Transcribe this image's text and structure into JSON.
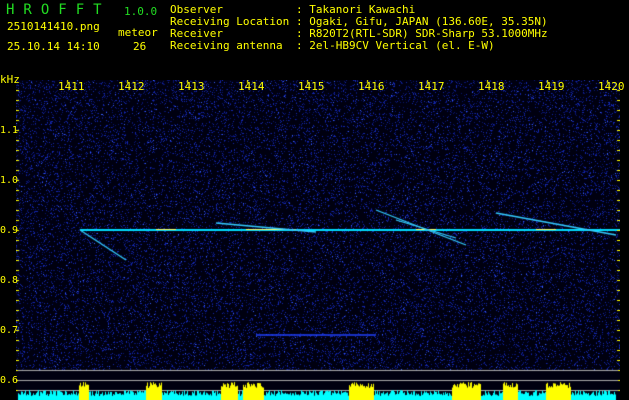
{
  "app": {
    "name": "HROFFT",
    "version": "1.0.0"
  },
  "file": {
    "name": "2510141410.png",
    "datetime": "25.10.14 14:10"
  },
  "meteor": {
    "label": "meteor",
    "count": "26"
  },
  "info": [
    {
      "label": "Observer",
      "value": ": Takanori Kawachi"
    },
    {
      "label": "Receiving Location",
      "value": ": Ogaki, Gifu, JAPAN (136.60E, 35.35N)"
    },
    {
      "label": "Receiver",
      "value": ": R820T2(RTL-SDR) SDR-Sharp 53.1000MHz"
    },
    {
      "label": "Receiving antenna",
      "value": ": 2el-HB9CV Vertical (el. E-W)"
    }
  ],
  "axis": {
    "unit": "kHz",
    "x_ticks": [
      "1411",
      "1412",
      "1413",
      "1414",
      "1415",
      "1416",
      "1417",
      "1418",
      "1419",
      "1420"
    ],
    "y_ticks": [
      "1.1",
      "1.0",
      "0.9",
      "0.8",
      "0.7",
      "0.6"
    ]
  },
  "colors": {
    "text": "#ffff00",
    "title": "#22dd22",
    "background": "#000000",
    "noise": "#1020c0",
    "signal": "#00ffff",
    "level": "#ffff00"
  }
}
